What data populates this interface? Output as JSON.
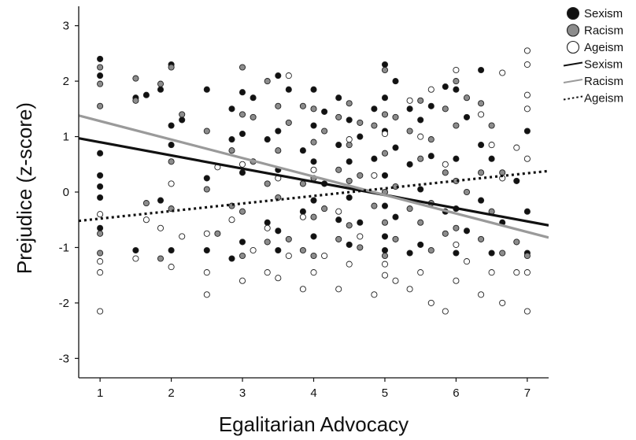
{
  "chart_data": {
    "type": "scatter",
    "title": "",
    "xlabel": "Egalitarian Advocacy",
    "ylabel": "Prejudice (z-score)",
    "xlim": [
      0.7,
      7.3
    ],
    "ylim": [
      -3.35,
      3.35
    ],
    "xticks": [
      "1",
      "2",
      "3",
      "4",
      "5",
      "6",
      "7"
    ],
    "yticks": [
      "3",
      "2",
      "1",
      "0",
      "-1",
      "-2",
      "-3"
    ],
    "grid": false,
    "legend_position": "top-right",
    "colors": {
      "sexism": "#111111",
      "racism": "#8c8c8c",
      "ageism": "#ffffff",
      "racism_line": "#9a9a9a"
    },
    "legend": [
      {
        "label": "Sexism",
        "kind": "marker",
        "fill": "#111111"
      },
      {
        "label": "Racism",
        "kind": "marker",
        "fill": "#8c8c8c"
      },
      {
        "label": "Ageism",
        "kind": "marker",
        "fill": "#ffffff"
      },
      {
        "label": "Sexism",
        "kind": "line",
        "style": "solid",
        "color": "#111111"
      },
      {
        "label": "Racism",
        "kind": "line",
        "style": "solid",
        "color": "#9a9a9a"
      },
      {
        "label": "Ageism",
        "kind": "line",
        "style": "dotted",
        "color": "#111111"
      }
    ],
    "series": [
      {
        "name": "Sexism",
        "marker_fill": "#111111",
        "points": [
          [
            1,
            2.4
          ],
          [
            1,
            2.1
          ],
          [
            1,
            0.7
          ],
          [
            1,
            0.3
          ],
          [
            1,
            0.1
          ],
          [
            1,
            -0.1
          ],
          [
            1,
            -0.65
          ],
          [
            1.5,
            1.7
          ],
          [
            1.5,
            -1.05
          ],
          [
            1.65,
            1.75
          ],
          [
            1.85,
            1.85
          ],
          [
            1.85,
            -0.15
          ],
          [
            2,
            2.3
          ],
          [
            2,
            1.2
          ],
          [
            2,
            0.85
          ],
          [
            2,
            -1.05
          ],
          [
            2.15,
            1.3
          ],
          [
            2.5,
            1.85
          ],
          [
            2.5,
            0.25
          ],
          [
            2.5,
            -1.05
          ],
          [
            2.85,
            1.5
          ],
          [
            2.85,
            0.95
          ],
          [
            2.85,
            -1.2
          ],
          [
            3,
            1.8
          ],
          [
            3,
            1.05
          ],
          [
            3,
            0.35
          ],
          [
            3,
            -0.9
          ],
          [
            3.15,
            1.7
          ],
          [
            3.35,
            0.95
          ],
          [
            3.35,
            -0.55
          ],
          [
            3.5,
            2.1
          ],
          [
            3.5,
            1.1
          ],
          [
            3.5,
            0.4
          ],
          [
            3.5,
            -0.7
          ],
          [
            3.5,
            -1.05
          ],
          [
            3.65,
            1.85
          ],
          [
            3.85,
            0.75
          ],
          [
            3.85,
            -0.35
          ],
          [
            4,
            1.85
          ],
          [
            4,
            1.2
          ],
          [
            4,
            0.55
          ],
          [
            4,
            -0.15
          ],
          [
            4,
            -0.8
          ],
          [
            4.15,
            1.45
          ],
          [
            4.15,
            0.15
          ],
          [
            4.35,
            1.7
          ],
          [
            4.35,
            0.85
          ],
          [
            4.35,
            -0.5
          ],
          [
            4.5,
            1.3
          ],
          [
            4.5,
            0.55
          ],
          [
            4.5,
            -0.1
          ],
          [
            4.5,
            -0.95
          ],
          [
            4.65,
            1.0
          ],
          [
            4.65,
            -0.55
          ],
          [
            4.85,
            1.5
          ],
          [
            4.85,
            0.6
          ],
          [
            5,
            2.3
          ],
          [
            5,
            1.7
          ],
          [
            5,
            1.1
          ],
          [
            5,
            0.3
          ],
          [
            5,
            -0.25
          ],
          [
            5,
            -0.8
          ],
          [
            5,
            -1.05
          ],
          [
            5.15,
            2.0
          ],
          [
            5.15,
            0.8
          ],
          [
            5.15,
            -0.45
          ],
          [
            5.35,
            1.5
          ],
          [
            5.35,
            0.5
          ],
          [
            5.35,
            -1.1
          ],
          [
            5.5,
            1.3
          ],
          [
            5.5,
            0.05
          ],
          [
            5.5,
            -0.95
          ],
          [
            5.65,
            1.55
          ],
          [
            5.65,
            0.65
          ],
          [
            5.85,
            1.9
          ],
          [
            5.85,
            -0.35
          ],
          [
            6,
            1.85
          ],
          [
            6,
            0.6
          ],
          [
            6,
            -0.3
          ],
          [
            6,
            -1.1
          ],
          [
            6.15,
            1.35
          ],
          [
            6.15,
            -0.7
          ],
          [
            6.35,
            2.2
          ],
          [
            6.35,
            0.85
          ],
          [
            6.35,
            -0.15
          ],
          [
            6.5,
            0.6
          ],
          [
            6.5,
            -1.1
          ],
          [
            6.65,
            -0.55
          ],
          [
            6.85,
            0.2
          ],
          [
            7,
            1.1
          ],
          [
            7,
            -0.35
          ],
          [
            7,
            -1.1
          ]
        ]
      },
      {
        "name": "Racism",
        "marker_fill": "#8c8c8c",
        "points": [
          [
            1,
            2.25
          ],
          [
            1,
            1.95
          ],
          [
            1,
            1.55
          ],
          [
            1,
            -0.75
          ],
          [
            1,
            -1.1
          ],
          [
            1.5,
            2.05
          ],
          [
            1.5,
            1.65
          ],
          [
            1.65,
            -0.2
          ],
          [
            1.85,
            1.95
          ],
          [
            1.85,
            -1.2
          ],
          [
            2,
            2.25
          ],
          [
            2,
            0.55
          ],
          [
            2,
            -0.3
          ],
          [
            2.15,
            1.4
          ],
          [
            2.5,
            1.1
          ],
          [
            2.5,
            0.05
          ],
          [
            2.65,
            -0.75
          ],
          [
            2.85,
            0.75
          ],
          [
            2.85,
            -0.25
          ],
          [
            3,
            2.25
          ],
          [
            3,
            1.4
          ],
          [
            3,
            -0.35
          ],
          [
            3,
            -1.15
          ],
          [
            3.15,
            1.35
          ],
          [
            3.15,
            0.55
          ],
          [
            3.35,
            2.0
          ],
          [
            3.35,
            0.15
          ],
          [
            3.35,
            -0.9
          ],
          [
            3.5,
            1.55
          ],
          [
            3.5,
            0.75
          ],
          [
            3.5,
            -0.1
          ],
          [
            3.65,
            1.25
          ],
          [
            3.65,
            -0.85
          ],
          [
            3.85,
            1.55
          ],
          [
            3.85,
            0.15
          ],
          [
            3.85,
            -1.05
          ],
          [
            4,
            1.5
          ],
          [
            4,
            0.9
          ],
          [
            4,
            0.25
          ],
          [
            4,
            -0.45
          ],
          [
            4,
            -1.15
          ],
          [
            4.15,
            1.1
          ],
          [
            4.15,
            -0.3
          ],
          [
            4.35,
            1.35
          ],
          [
            4.35,
            0.4
          ],
          [
            4.35,
            -0.85
          ],
          [
            4.5,
            1.6
          ],
          [
            4.5,
            0.85
          ],
          [
            4.5,
            0.2
          ],
          [
            4.5,
            -0.6
          ],
          [
            4.65,
            1.25
          ],
          [
            4.65,
            0.3
          ],
          [
            4.65,
            -1.0
          ],
          [
            4.85,
            1.2
          ],
          [
            4.85,
            -0.25
          ],
          [
            5,
            2.2
          ],
          [
            5,
            1.4
          ],
          [
            5,
            0.7
          ],
          [
            5,
            0.0
          ],
          [
            5,
            -0.55
          ],
          [
            5,
            -1.15
          ],
          [
            5.15,
            1.35
          ],
          [
            5.15,
            0.1
          ],
          [
            5.15,
            -0.85
          ],
          [
            5.35,
            1.1
          ],
          [
            5.35,
            -0.3
          ],
          [
            5.5,
            1.65
          ],
          [
            5.5,
            0.6
          ],
          [
            5.5,
            -0.55
          ],
          [
            5.65,
            0.95
          ],
          [
            5.65,
            -0.2
          ],
          [
            5.65,
            -1.05
          ],
          [
            5.85,
            1.5
          ],
          [
            5.85,
            0.35
          ],
          [
            5.85,
            -0.75
          ],
          [
            6,
            2.0
          ],
          [
            6,
            1.2
          ],
          [
            6,
            0.2
          ],
          [
            6,
            -0.65
          ],
          [
            6.15,
            1.7
          ],
          [
            6.15,
            0.0
          ],
          [
            6.35,
            1.6
          ],
          [
            6.35,
            0.35
          ],
          [
            6.35,
            -0.85
          ],
          [
            6.5,
            1.2
          ],
          [
            6.5,
            -0.35
          ],
          [
            6.65,
            0.35
          ],
          [
            6.65,
            -1.1
          ],
          [
            6.85,
            -0.9
          ],
          [
            7,
            -1.15
          ]
        ]
      },
      {
        "name": "Ageism",
        "marker_fill": "#ffffff",
        "points": [
          [
            1,
            -0.4
          ],
          [
            1,
            -1.25
          ],
          [
            1,
            -1.45
          ],
          [
            1,
            -2.15
          ],
          [
            1.5,
            -1.2
          ],
          [
            1.65,
            -0.5
          ],
          [
            1.85,
            -0.65
          ],
          [
            2,
            0.15
          ],
          [
            2,
            -1.35
          ],
          [
            2.15,
            -0.8
          ],
          [
            2.5,
            -0.75
          ],
          [
            2.5,
            -1.45
          ],
          [
            2.5,
            -1.85
          ],
          [
            2.65,
            0.45
          ],
          [
            2.85,
            -0.5
          ],
          [
            3,
            -1.6
          ],
          [
            3,
            0.5
          ],
          [
            3.15,
            -1.05
          ],
          [
            3.35,
            -1.45
          ],
          [
            3.35,
            -0.65
          ],
          [
            3.5,
            -1.55
          ],
          [
            3.5,
            0.25
          ],
          [
            3.65,
            2.1
          ],
          [
            3.65,
            -1.15
          ],
          [
            3.85,
            -1.75
          ],
          [
            3.85,
            -0.45
          ],
          [
            4,
            -1.45
          ],
          [
            4,
            0.4
          ],
          [
            4.15,
            -1.15
          ],
          [
            4.35,
            -1.75
          ],
          [
            4.35,
            -0.35
          ],
          [
            4.5,
            0.95
          ],
          [
            4.5,
            -1.3
          ],
          [
            4.65,
            -0.8
          ],
          [
            4.85,
            -1.85
          ],
          [
            4.85,
            0.3
          ],
          [
            5,
            -1.3
          ],
          [
            5,
            -1.5
          ],
          [
            5,
            1.05
          ],
          [
            5.15,
            -1.6
          ],
          [
            5.35,
            1.65
          ],
          [
            5.35,
            -1.75
          ],
          [
            5.5,
            -1.45
          ],
          [
            5.5,
            1.0
          ],
          [
            5.65,
            -2.0
          ],
          [
            5.65,
            1.85
          ],
          [
            5.85,
            -2.15
          ],
          [
            5.85,
            0.5
          ],
          [
            6,
            -1.6
          ],
          [
            6,
            2.2
          ],
          [
            6,
            -0.95
          ],
          [
            6.15,
            -1.25
          ],
          [
            6.35,
            -1.85
          ],
          [
            6.35,
            1.4
          ],
          [
            6.5,
            -1.45
          ],
          [
            6.5,
            0.85
          ],
          [
            6.65,
            -2.0
          ],
          [
            6.65,
            2.15
          ],
          [
            6.65,
            0.25
          ],
          [
            6.85,
            -1.45
          ],
          [
            6.85,
            0.8
          ],
          [
            7,
            2.55
          ],
          [
            7,
            2.3
          ],
          [
            7,
            1.75
          ],
          [
            7,
            1.5
          ],
          [
            7,
            -1.45
          ],
          [
            7,
            -2.15
          ],
          [
            7,
            0.6
          ]
        ]
      }
    ],
    "fit_lines": [
      {
        "name": "Sexism",
        "style": "solid",
        "color": "#111111",
        "width": 3.2,
        "x": [
          0.7,
          7.3
        ],
        "y": [
          0.97,
          -0.6
        ]
      },
      {
        "name": "Racism",
        "style": "solid",
        "color": "#9a9a9a",
        "width": 3.2,
        "x": [
          0.7,
          7.3
        ],
        "y": [
          1.38,
          -0.82
        ]
      },
      {
        "name": "Ageism",
        "style": "dotted",
        "color": "#111111",
        "width": 3.2,
        "x": [
          0.7,
          7.3
        ],
        "y": [
          -0.52,
          0.38
        ]
      }
    ]
  }
}
